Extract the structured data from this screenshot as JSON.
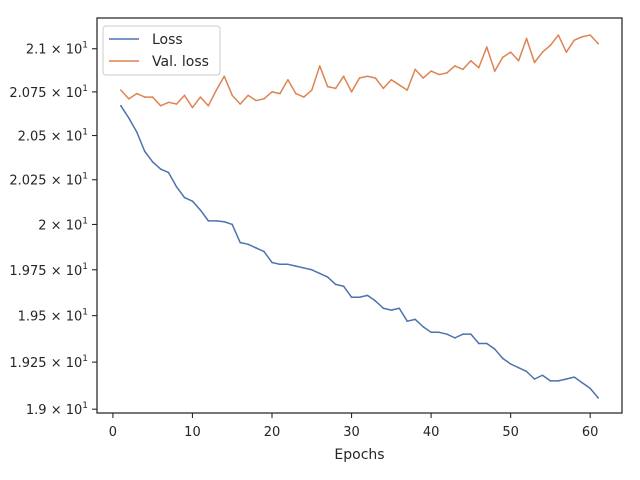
{
  "chart_data": {
    "type": "line",
    "title": "",
    "xlabel": "Epochs",
    "ylabel": "",
    "xlim": [
      -2,
      64
    ],
    "ylim": [
      18.98,
      21.18
    ],
    "y_scale": "log",
    "grid": false,
    "legend_position": "top-left",
    "x_ticks": [
      {
        "value": 0,
        "label": "0"
      },
      {
        "value": 10,
        "label": "10"
      },
      {
        "value": 20,
        "label": "20"
      },
      {
        "value": 30,
        "label": "30"
      },
      {
        "value": 40,
        "label": "40"
      },
      {
        "value": 50,
        "label": "50"
      },
      {
        "value": 60,
        "label": "60"
      }
    ],
    "y_ticks": [
      {
        "value": 19.0,
        "base": "1.9",
        "exp": "1"
      },
      {
        "value": 19.25,
        "base": "1.925",
        "exp": "1"
      },
      {
        "value": 19.5,
        "base": "1.95",
        "exp": "1"
      },
      {
        "value": 19.75,
        "base": "1.975",
        "exp": "1"
      },
      {
        "value": 20.0,
        "base": "2",
        "exp": "1"
      },
      {
        "value": 20.25,
        "base": "2.025",
        "exp": "1"
      },
      {
        "value": 20.5,
        "base": "2.05",
        "exp": "1"
      },
      {
        "value": 20.75,
        "base": "2.075",
        "exp": "1"
      },
      {
        "value": 21.0,
        "base": "2.1",
        "exp": "1"
      }
    ],
    "x": [
      1,
      2,
      3,
      4,
      5,
      6,
      7,
      8,
      9,
      10,
      11,
      12,
      13,
      14,
      15,
      16,
      17,
      18,
      19,
      20,
      21,
      22,
      23,
      24,
      25,
      26,
      27,
      28,
      29,
      30,
      31,
      32,
      33,
      34,
      35,
      36,
      37,
      38,
      39,
      40,
      41,
      42,
      43,
      44,
      45,
      46,
      47,
      48,
      49,
      50,
      51,
      52,
      53,
      54,
      55,
      56,
      57,
      58,
      59,
      60,
      61
    ],
    "series": [
      {
        "name": "Loss",
        "color": "#4c72b0",
        "values": [
          20.67,
          20.6,
          20.52,
          20.41,
          20.35,
          20.31,
          20.29,
          20.21,
          20.15,
          20.13,
          20.08,
          20.02,
          20.02,
          20.015,
          20.0,
          19.9,
          19.89,
          19.87,
          19.85,
          19.79,
          19.78,
          19.78,
          19.77,
          19.76,
          19.75,
          19.73,
          19.71,
          19.67,
          19.66,
          19.6,
          19.6,
          19.61,
          19.58,
          19.54,
          19.53,
          19.54,
          19.47,
          19.48,
          19.44,
          19.41,
          19.41,
          19.4,
          19.38,
          19.4,
          19.4,
          19.35,
          19.35,
          19.32,
          19.27,
          19.24,
          19.22,
          19.2,
          19.16,
          19.18,
          19.15,
          19.15,
          19.16,
          19.17,
          19.14,
          19.11,
          19.06
        ]
      },
      {
        "name": "Val. loss",
        "color": "#dd8452",
        "values": [
          20.76,
          20.71,
          20.74,
          20.72,
          20.72,
          20.67,
          20.69,
          20.68,
          20.73,
          20.66,
          20.72,
          20.67,
          20.76,
          20.84,
          20.73,
          20.68,
          20.73,
          20.7,
          20.71,
          20.75,
          20.74,
          20.82,
          20.74,
          20.72,
          20.76,
          20.9,
          20.78,
          20.77,
          20.84,
          20.75,
          20.83,
          20.84,
          20.83,
          20.77,
          20.82,
          20.79,
          20.76,
          20.88,
          20.83,
          20.87,
          20.85,
          20.86,
          20.9,
          20.88,
          20.93,
          20.89,
          21.01,
          20.87,
          20.95,
          20.98,
          20.93,
          21.06,
          20.92,
          20.98,
          21.02,
          21.08,
          20.98,
          21.05,
          21.07,
          21.08,
          21.03
        ]
      }
    ]
  }
}
